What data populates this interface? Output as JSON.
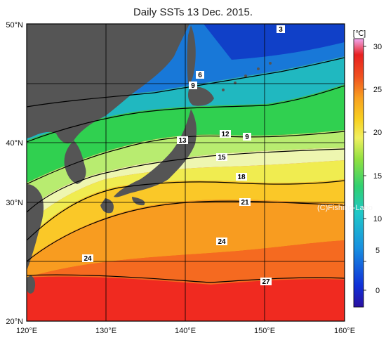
{
  "title": "Daily SSTs 13 Dec. 2015.",
  "copyright": "(C)Fishing-Labo",
  "colorbar": {
    "unit": "[℃]",
    "ticks": [
      "30",
      "25",
      "20",
      "15",
      "10",
      "5",
      "0"
    ]
  },
  "axes": {
    "lat_labels": [
      "50°N",
      "40°N",
      "30°N",
      "20°N"
    ],
    "lon_labels": [
      "120°E",
      "130°E",
      "140°E",
      "150°E",
      "160°E"
    ]
  },
  "contour_labels": [
    "3",
    "6",
    "9",
    "12",
    "9",
    "13",
    "15",
    "18",
    "21",
    "24",
    "24",
    "27"
  ],
  "colors": {
    "land": "#555555",
    "grid": "#000000",
    "warm": "#ff3a1a",
    "cold": "#1a3ad0"
  }
}
